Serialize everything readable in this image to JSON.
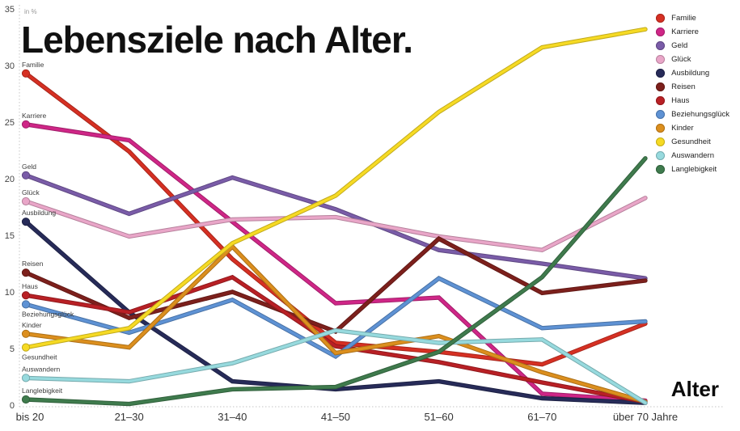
{
  "title": "Lebensziele nach Alter.",
  "unit_label": "in %",
  "x_axis_label": "Alter",
  "chart_data": {
    "type": "line",
    "title": "Lebensziele nach Alter.",
    "ylabel": "in %",
    "xlabel": "Alter",
    "ylim": [
      0,
      35
    ],
    "yticks": [
      0,
      5,
      10,
      15,
      20,
      25,
      30,
      35
    ],
    "grid": false,
    "axis_style": "dotted",
    "legend_position": "top-right",
    "point_markers": "first-point-only",
    "inline_labels": true,
    "categories": [
      "bis 20",
      "21–30",
      "31–40",
      "41–50",
      "51–60",
      "61–70",
      "über 70 Jahre"
    ],
    "series": [
      {
        "name": "Familie",
        "color": "#d63023",
        "values": [
          29.3,
          22.4,
          12.9,
          5.5,
          4.7,
          3.6,
          7.2
        ],
        "label_pos": "above"
      },
      {
        "name": "Karriere",
        "color": "#cf2687",
        "values": [
          24.8,
          23.4,
          16.2,
          9.0,
          9.5,
          1.0,
          0.4
        ],
        "label_pos": "above"
      },
      {
        "name": "Geld",
        "color": "#7a5ca8",
        "values": [
          20.3,
          16.9,
          20.1,
          17.3,
          13.7,
          12.5,
          11.2
        ],
        "label_pos": "above"
      },
      {
        "name": "Glück",
        "color": "#e9a6c8",
        "values": [
          18.0,
          14.9,
          16.4,
          16.6,
          14.9,
          13.7,
          18.3
        ],
        "label_pos": "above"
      },
      {
        "name": "Ausbildung",
        "color": "#272b59",
        "values": [
          16.2,
          8.2,
          2.1,
          1.4,
          2.1,
          0.6,
          0.2
        ],
        "label_pos": "above"
      },
      {
        "name": "Reisen",
        "color": "#7d201c",
        "values": [
          11.7,
          7.7,
          10.0,
          6.5,
          14.7,
          9.9,
          11.0
        ],
        "label_pos": "above"
      },
      {
        "name": "Haus",
        "color": "#b92025",
        "values": [
          9.7,
          8.2,
          11.3,
          5.2,
          3.8,
          2.0,
          0.3
        ],
        "label_pos": "above"
      },
      {
        "name": "Beziehungsglück",
        "color": "#5e92d4",
        "values": [
          8.9,
          6.4,
          9.3,
          4.3,
          11.2,
          6.8,
          7.4
        ],
        "label_pos": "below"
      },
      {
        "name": "Kinder",
        "color": "#dc8f1e",
        "values": [
          6.3,
          5.1,
          14.0,
          4.6,
          6.1,
          2.9,
          0.3
        ],
        "label_pos": "above"
      },
      {
        "name": "Gesundheit",
        "color": "#f6da24",
        "values": [
          5.1,
          6.8,
          14.3,
          18.5,
          25.9,
          31.6,
          33.2
        ],
        "label_pos": "below"
      },
      {
        "name": "Auswandern",
        "color": "#97dade",
        "values": [
          2.4,
          2.1,
          3.7,
          6.6,
          5.5,
          5.8,
          0.2
        ],
        "label_pos": "above"
      },
      {
        "name": "Langlebigkeit",
        "color": "#3f7b4d",
        "values": [
          0.5,
          0.1,
          1.4,
          1.6,
          4.7,
          11.3,
          21.8
        ],
        "label_pos": "above"
      }
    ]
  }
}
